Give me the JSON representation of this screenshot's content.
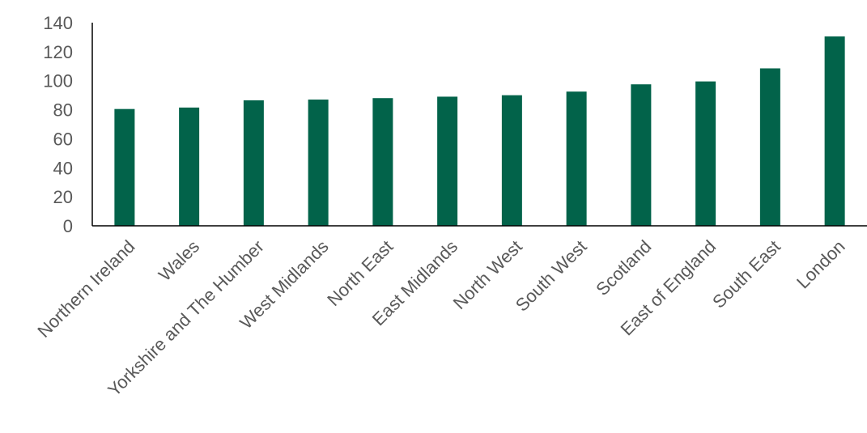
{
  "chart_data": {
    "type": "bar",
    "title": "",
    "xlabel": "",
    "ylabel": "",
    "categories": [
      "Northern Ireland",
      "Wales",
      "Yorkshire and The Humber",
      "West Midlands",
      "North East",
      "East Midlands",
      "North West",
      "South West",
      "Scotland",
      "East of England",
      "South East",
      "London"
    ],
    "values": [
      80.5,
      81.5,
      86.5,
      87,
      88,
      89,
      90,
      92.5,
      97.5,
      99.5,
      108.5,
      130.5
    ],
    "ylim": [
      0,
      140
    ],
    "yticks": [
      "0",
      "20",
      "40",
      "60",
      "80",
      "100",
      "120",
      "140"
    ],
    "grid": false,
    "legend": "none",
    "bar_color": "#02634A"
  }
}
